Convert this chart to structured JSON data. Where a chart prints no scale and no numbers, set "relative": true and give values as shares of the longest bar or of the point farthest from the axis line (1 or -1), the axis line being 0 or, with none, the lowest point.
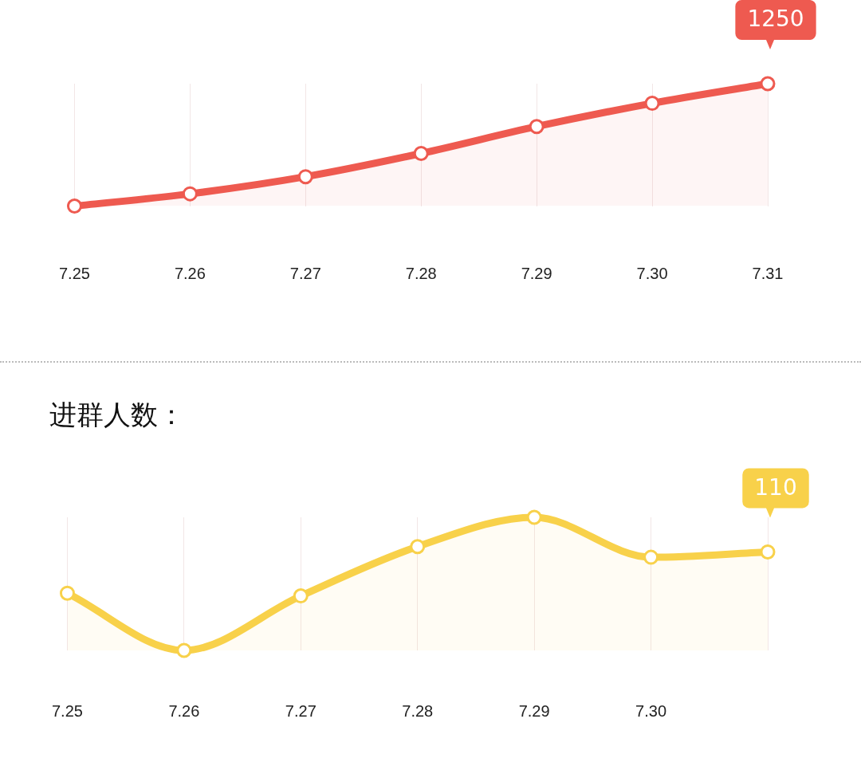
{
  "chart_data": [
    {
      "type": "area",
      "relative": true,
      "categories": [
        "7.25",
        "7.26",
        "7.27",
        "7.28",
        "7.29",
        "7.30",
        "7.31"
      ],
      "series": [
        {
          "color": "#ee5a50",
          "values": [
            0,
            0.1,
            0.24,
            0.43,
            0.65,
            0.84,
            1
          ]
        }
      ],
      "annotations": [
        {
          "text": "1250",
          "x": "7.31",
          "y": 1
        }
      ],
      "grid": "x",
      "marker": "circle",
      "legend": false
    },
    {
      "type": "area",
      "title": "进群人数：",
      "relative": true,
      "categories": [
        "7.25",
        "7.26",
        "7.27",
        "7.28",
        "7.29",
        "7.30",
        null
      ],
      "series": [
        {
          "color": "#f8d14a",
          "values": [
            0.43,
            0,
            0.41,
            0.78,
            1,
            0.7,
            0.74
          ]
        }
      ],
      "annotations": [
        {
          "text": "110",
          "y": 0.74
        }
      ],
      "grid": "x",
      "marker": "circle",
      "legend": false
    }
  ]
}
